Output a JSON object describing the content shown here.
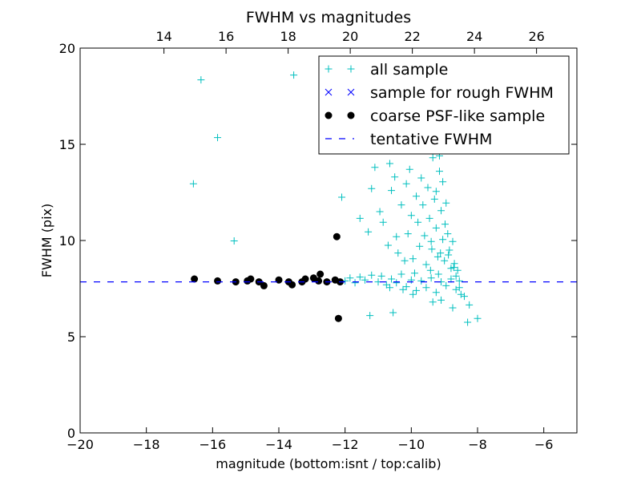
{
  "chart_data": {
    "type": "scatter",
    "title": "FWHM vs magnitudes",
    "xlabel": "magnitude (bottom:isnt / top:calib)",
    "ylabel": "FWHM (pix)",
    "xlim": [
      -20,
      -5
    ],
    "ylim": [
      0,
      20
    ],
    "top_xlim": [
      11.3,
      27.3
    ],
    "x_ticks": [
      -20,
      -18,
      -16,
      -14,
      -12,
      -10,
      -8,
      -6
    ],
    "x_tick_labels": [
      "−20",
      "−18",
      "−16",
      "−14",
      "−12",
      "−10",
      "−8",
      "−6"
    ],
    "y_ticks": [
      0,
      5,
      10,
      15,
      20
    ],
    "y_tick_labels": [
      "0",
      "5",
      "10",
      "15",
      "20"
    ],
    "top_x_ticks": [
      14,
      16,
      18,
      20,
      22,
      24,
      26
    ],
    "top_x_tick_labels": [
      "14",
      "16",
      "18",
      "20",
      "22",
      "24",
      "26"
    ],
    "grid": false,
    "legend_position": "top-right",
    "series": [
      {
        "name": "all sample",
        "marker": "plus",
        "color": "#00bfbf",
        "points": [
          [
            -16.58,
            12.95
          ],
          [
            -16.35,
            18.35
          ],
          [
            -15.85,
            15.35
          ],
          [
            -15.35,
            9.98
          ],
          [
            -13.55,
            18.6
          ],
          [
            -12.1,
            12.25
          ],
          [
            -11.55,
            11.15
          ],
          [
            -11.3,
            10.45
          ],
          [
            -11.25,
            6.1
          ],
          [
            -11.2,
            12.7
          ],
          [
            -11.1,
            13.8
          ],
          [
            -10.95,
            11.5
          ],
          [
            -10.85,
            10.95
          ],
          [
            -10.7,
            9.75
          ],
          [
            -10.65,
            14.0
          ],
          [
            -10.6,
            12.6
          ],
          [
            -10.55,
            6.25
          ],
          [
            -10.5,
            13.3
          ],
          [
            -10.45,
            10.2
          ],
          [
            -10.4,
            9.35
          ],
          [
            -10.3,
            11.85
          ],
          [
            -10.2,
            8.95
          ],
          [
            -10.15,
            12.95
          ],
          [
            -10.1,
            10.35
          ],
          [
            -10.05,
            13.7
          ],
          [
            -10.0,
            11.3
          ],
          [
            -9.95,
            9.05
          ],
          [
            -9.9,
            8.3
          ],
          [
            -9.85,
            12.3
          ],
          [
            -9.8,
            10.95
          ],
          [
            -9.75,
            9.7
          ],
          [
            -9.7,
            13.25
          ],
          [
            -9.65,
            11.85
          ],
          [
            -9.6,
            10.25
          ],
          [
            -9.55,
            8.75
          ],
          [
            -9.5,
            12.75
          ],
          [
            -9.45,
            11.15
          ],
          [
            -9.4,
            9.95
          ],
          [
            -9.35,
            14.3
          ],
          [
            -9.3,
            12.15
          ],
          [
            -9.25,
            10.65
          ],
          [
            -9.2,
            9.15
          ],
          [
            -9.15,
            13.6
          ],
          [
            -9.1,
            11.55
          ],
          [
            -9.05,
            10.05
          ],
          [
            -9.0,
            8.95
          ],
          [
            -8.95,
            11.95
          ],
          [
            -8.9,
            10.35
          ],
          [
            -8.85,
            9.5
          ],
          [
            -8.8,
            8.55
          ],
          [
            -8.75,
            9.95
          ],
          [
            -8.7,
            8.8
          ],
          [
            -8.65,
            8.15
          ],
          [
            -8.6,
            8.45
          ],
          [
            -8.55,
            7.9
          ],
          [
            -9.15,
            14.4
          ],
          [
            -9.05,
            13.05
          ],
          [
            -9.25,
            12.55
          ],
          [
            -8.98,
            10.85
          ],
          [
            -9.38,
            9.55
          ],
          [
            -9.12,
            9.35
          ],
          [
            -9.42,
            8.45
          ],
          [
            -9.18,
            8.25
          ],
          [
            -8.88,
            9.25
          ],
          [
            -8.72,
            8.6
          ],
          [
            -12.0,
            7.9
          ],
          [
            -11.85,
            8.05
          ],
          [
            -11.7,
            7.8
          ],
          [
            -11.55,
            8.1
          ],
          [
            -11.4,
            7.95
          ],
          [
            -11.2,
            8.2
          ],
          [
            -11.0,
            7.85
          ],
          [
            -10.9,
            8.15
          ],
          [
            -10.75,
            7.7
          ],
          [
            -10.6,
            8.0
          ],
          [
            -10.45,
            7.8
          ],
          [
            -10.3,
            8.25
          ],
          [
            -10.15,
            7.6
          ],
          [
            -10.0,
            7.95
          ],
          [
            -9.85,
            7.4
          ],
          [
            -9.7,
            7.9
          ],
          [
            -9.55,
            7.55
          ],
          [
            -9.4,
            8.05
          ],
          [
            -9.25,
            7.3
          ],
          [
            -9.1,
            7.85
          ],
          [
            -8.95,
            7.65
          ],
          [
            -8.8,
            8.0
          ],
          [
            -8.65,
            7.45
          ],
          [
            -8.5,
            7.2
          ],
          [
            -8.4,
            7.1
          ],
          [
            -9.35,
            6.8
          ],
          [
            -9.1,
            6.9
          ],
          [
            -8.75,
            6.5
          ],
          [
            -8.25,
            6.65
          ],
          [
            -8.3,
            5.75
          ],
          [
            -8.0,
            5.95
          ],
          [
            -8.55,
            7.55
          ],
          [
            -10.25,
            7.45
          ],
          [
            -9.95,
            7.2
          ],
          [
            -10.65,
            7.55
          ]
        ]
      },
      {
        "name": "sample for rough FWHM",
        "marker": "x",
        "color": "#0000ff",
        "points": []
      },
      {
        "name": "coarse PSF-like sample",
        "marker": "circle",
        "color": "#000000",
        "points": [
          [
            -16.55,
            8.0
          ],
          [
            -15.85,
            7.9
          ],
          [
            -15.3,
            7.85
          ],
          [
            -14.95,
            7.9
          ],
          [
            -14.85,
            8.0
          ],
          [
            -14.6,
            7.85
          ],
          [
            -14.45,
            7.65
          ],
          [
            -14.0,
            7.95
          ],
          [
            -13.7,
            7.85
          ],
          [
            -13.6,
            7.7
          ],
          [
            -13.3,
            7.85
          ],
          [
            -13.2,
            8.0
          ],
          [
            -12.95,
            8.05
          ],
          [
            -12.75,
            8.25
          ],
          [
            -12.8,
            7.9
          ],
          [
            -12.55,
            7.85
          ],
          [
            -12.3,
            7.95
          ],
          [
            -12.15,
            7.85
          ],
          [
            -12.25,
            10.2
          ],
          [
            -12.2,
            5.95
          ]
        ]
      },
      {
        "name": "tentative FWHM",
        "marker": "dashed-line",
        "color": "#0000ff",
        "y": 7.85
      }
    ]
  }
}
